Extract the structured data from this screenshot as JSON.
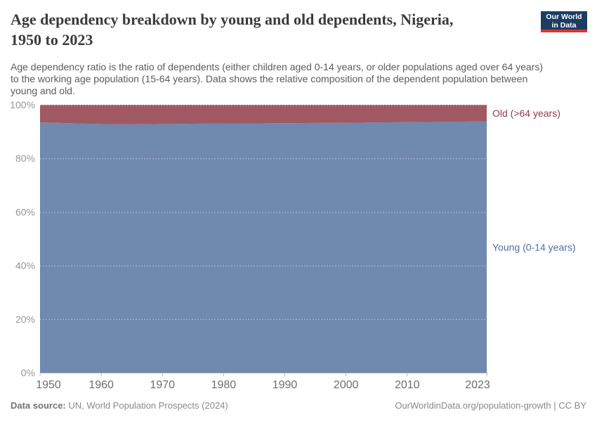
{
  "header": {
    "title_lines": [
      "Age dependency breakdown by young and old dependents, Nigeria,",
      "1950 to 2023"
    ],
    "subtitle_lines": [
      "Age dependency ratio is the ratio of dependents (either children aged 0-14 years, or older populations aged over 64 years)",
      "to the working age population (15-64 years). Data shows the relative composition of the dependent population between",
      "young and old."
    ],
    "logo": {
      "line1": "Our World",
      "line2": "in Data",
      "bg": "#1d3d63",
      "accent": "#dc352b"
    }
  },
  "chart_data": {
    "type": "area",
    "stacked": true,
    "percent": true,
    "title": "Age dependency breakdown by young and old dependents, Nigeria, 1950 to 2023",
    "x": [
      1950,
      1955,
      1960,
      1965,
      1970,
      1975,
      1980,
      1985,
      1990,
      1995,
      2000,
      2005,
      2010,
      2015,
      2020,
      2023
    ],
    "series": [
      {
        "name": "Young (0-14 years)",
        "color": "#7089af",
        "label_color": "#4d6fa5",
        "values": [
          93.4,
          93.1,
          92.8,
          92.7,
          92.8,
          92.9,
          93.0,
          93.05,
          93.1,
          93.2,
          93.25,
          93.4,
          93.5,
          93.6,
          93.75,
          93.8
        ]
      },
      {
        "name": "Old (>64 years)",
        "color": "#a05962",
        "label_color": "#8f3c48",
        "values": [
          6.6,
          6.9,
          7.2,
          7.3,
          7.2,
          7.1,
          7.0,
          6.95,
          6.9,
          6.8,
          6.75,
          6.6,
          6.5,
          6.4,
          6.25,
          6.2
        ]
      }
    ],
    "xlim": [
      1950,
      2023
    ],
    "ylim": [
      0,
      100
    ],
    "x_tick_years": [
      1950,
      1960,
      1970,
      1980,
      1990,
      2000,
      2010,
      2023
    ],
    "x_tick_labels": [
      "1950",
      "1960",
      "1970",
      "1980",
      "1990",
      "2000",
      "2010",
      "2023"
    ],
    "y_tick_values": [
      0,
      20,
      40,
      60,
      80,
      100
    ],
    "y_tick_labels": [
      "0%",
      "20%",
      "40%",
      "60%",
      "80%",
      "100%"
    ],
    "grid": "dashed",
    "legend_position": "right-edge-labels"
  },
  "footer": {
    "source_label": "Data source:",
    "source_value": " UN, World Population Prospects (2024)",
    "attribution": "OurWorldinData.org/population-growth | CC BY"
  },
  "style_colors": {
    "title": "#3b3b3b",
    "subtitle": "#5b5b5b",
    "y_tick": "#979797",
    "x_tick": "#6e6e6e",
    "axis_line": "#bfbfbf",
    "tick_mark": "#b9b9b9",
    "gridline": "rgba(255,255,255,0.45)"
  }
}
